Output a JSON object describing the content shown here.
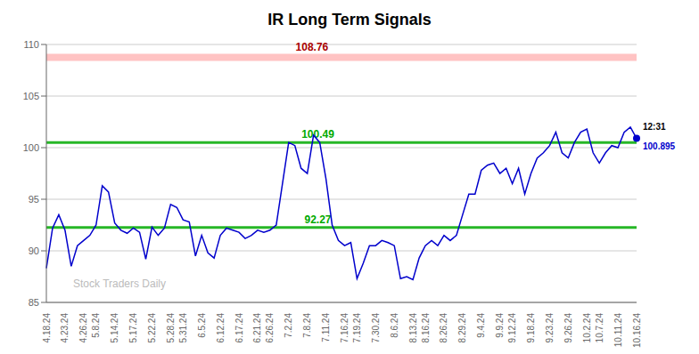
{
  "chart_data": {
    "type": "line",
    "title": "IR Long Term Signals",
    "categories": [
      "4.18.24",
      null,
      null,
      "4.23.24",
      null,
      null,
      "4.26.24",
      null,
      "5.8.24",
      null,
      null,
      "5.14.24",
      null,
      null,
      "5.17.24",
      null,
      null,
      "5.22.24",
      null,
      null,
      "5.28.24",
      null,
      "5.31.24",
      null,
      null,
      "6.5.24",
      null,
      null,
      "6.12.24",
      null,
      null,
      "6.17.24",
      null,
      null,
      "6.21.24",
      null,
      "6.26.24",
      null,
      null,
      "7.2.24",
      null,
      null,
      "7.8.24",
      null,
      null,
      "7.11.24",
      null,
      null,
      "7.16.24",
      null,
      "7.19.24",
      null,
      null,
      "7.30.24",
      null,
      null,
      "8.6.24",
      null,
      null,
      "8.13.24",
      null,
      "8.16.24",
      null,
      null,
      "8.26.24",
      null,
      null,
      "8.29.24",
      null,
      null,
      "9.4.24",
      null,
      null,
      "9.9.24",
      null,
      "9.12.24",
      null,
      null,
      "9.18.24",
      null,
      null,
      "9.23.24",
      null,
      null,
      "9.26.24",
      null,
      null,
      "10.2.24",
      null,
      "10.7.24",
      null,
      null,
      "10.11.24",
      null,
      null,
      "10.16.24"
    ],
    "values": [
      88.3,
      92.2,
      93.5,
      92.0,
      88.5,
      90.5,
      91.0,
      91.5,
      92.5,
      96.3,
      95.7,
      92.7,
      92.0,
      91.7,
      92.2,
      91.8,
      89.2,
      92.3,
      91.5,
      92.2,
      94.5,
      94.2,
      93.0,
      92.8,
      89.5,
      91.5,
      89.8,
      89.3,
      91.5,
      92.2,
      92.0,
      91.8,
      91.2,
      91.5,
      92.0,
      91.8,
      92.0,
      92.5,
      96.5,
      100.5,
      100.2,
      98.0,
      97.5,
      101.2,
      100.5,
      97.0,
      92.5,
      91.0,
      90.5,
      90.8,
      87.3,
      88.8,
      90.5,
      90.5,
      91.0,
      90.8,
      90.5,
      87.3,
      87.5,
      87.2,
      89.3,
      90.5,
      91.0,
      90.5,
      91.5,
      91.0,
      91.5,
      93.5,
      95.5,
      95.5,
      97.8,
      98.3,
      98.5,
      97.5,
      98.0,
      96.5,
      98.0,
      95.5,
      97.5,
      99.0,
      99.5,
      100.2,
      101.5,
      99.5,
      99.0,
      100.5,
      101.5,
      101.8,
      99.5,
      98.5,
      99.5,
      100.2,
      100.0,
      101.5,
      102.0,
      100.895
    ],
    "color": "#0000cc",
    "ylim": [
      85,
      110
    ],
    "yticks": [
      85,
      90,
      95,
      100,
      105,
      110
    ],
    "grid": true,
    "annotations": [
      {
        "text": "108.76",
        "y": 108.76,
        "color": "#aa0000",
        "line_color": "#ffaaaa"
      },
      {
        "text": "100.49",
        "y": 100.49,
        "color": "#00aa00",
        "line_color": "#00aa00"
      },
      {
        "text": "92.27",
        "y": 92.27,
        "color": "#00aa00",
        "line_color": "#00aa00"
      }
    ],
    "last_point": {
      "time": "12:31",
      "value": 100.895
    },
    "watermark": "Stock Traders Daily"
  }
}
